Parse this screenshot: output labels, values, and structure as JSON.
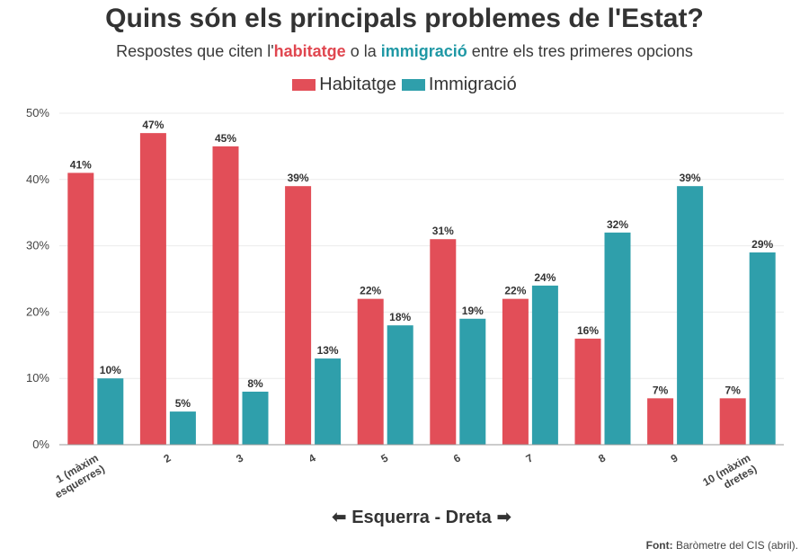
{
  "title": "Quins són els principals problemes de l'Estat?",
  "subtitle": {
    "prefix": "Respostes que citen l'",
    "highlight1": "habitatge",
    "middle": " o la ",
    "highlight2": "immigració",
    "suffix": " entre els tres primeres opcions"
  },
  "legend": [
    {
      "label": "Habitatge",
      "color": "#e24e58"
    },
    {
      "label": "Immigració",
      "color": "#2f9fab"
    }
  ],
  "axis_caption": "⬅ Esquerra - Dreta ➡",
  "source": {
    "label": "Font:",
    "text": " Baròmetre del CIS (abril)."
  },
  "chart_data": {
    "type": "bar",
    "categories": [
      "1 (màxim esquerres)",
      "2",
      "3",
      "4",
      "5",
      "6",
      "7",
      "8",
      "9",
      "10 (màxim dretes)"
    ],
    "series": [
      {
        "name": "Habitatge",
        "color": "#e24e58",
        "values": [
          41,
          47,
          45,
          39,
          22,
          31,
          22,
          16,
          7,
          7
        ]
      },
      {
        "name": "Immigració",
        "color": "#2f9fab",
        "values": [
          10,
          5,
          8,
          13,
          18,
          19,
          24,
          32,
          39,
          29
        ]
      }
    ],
    "value_labels": {
      "Habitatge": [
        "41%",
        "47%",
        "45%",
        "39%",
        "22%",
        "31%",
        "22%",
        "16%",
        "7%",
        "7%"
      ],
      "Immigració": [
        "10%",
        "5%",
        "8%",
        "13%",
        "18%",
        "19%",
        "24%",
        "32%",
        "39%",
        "29%"
      ]
    },
    "y_ticks": [
      0,
      10,
      20,
      30,
      40,
      50
    ],
    "y_tick_labels": [
      "0%",
      "10%",
      "20%",
      "30%",
      "40%",
      "50%"
    ],
    "ylim": [
      0,
      50
    ],
    "grid": true,
    "legend_position": "top-center"
  }
}
